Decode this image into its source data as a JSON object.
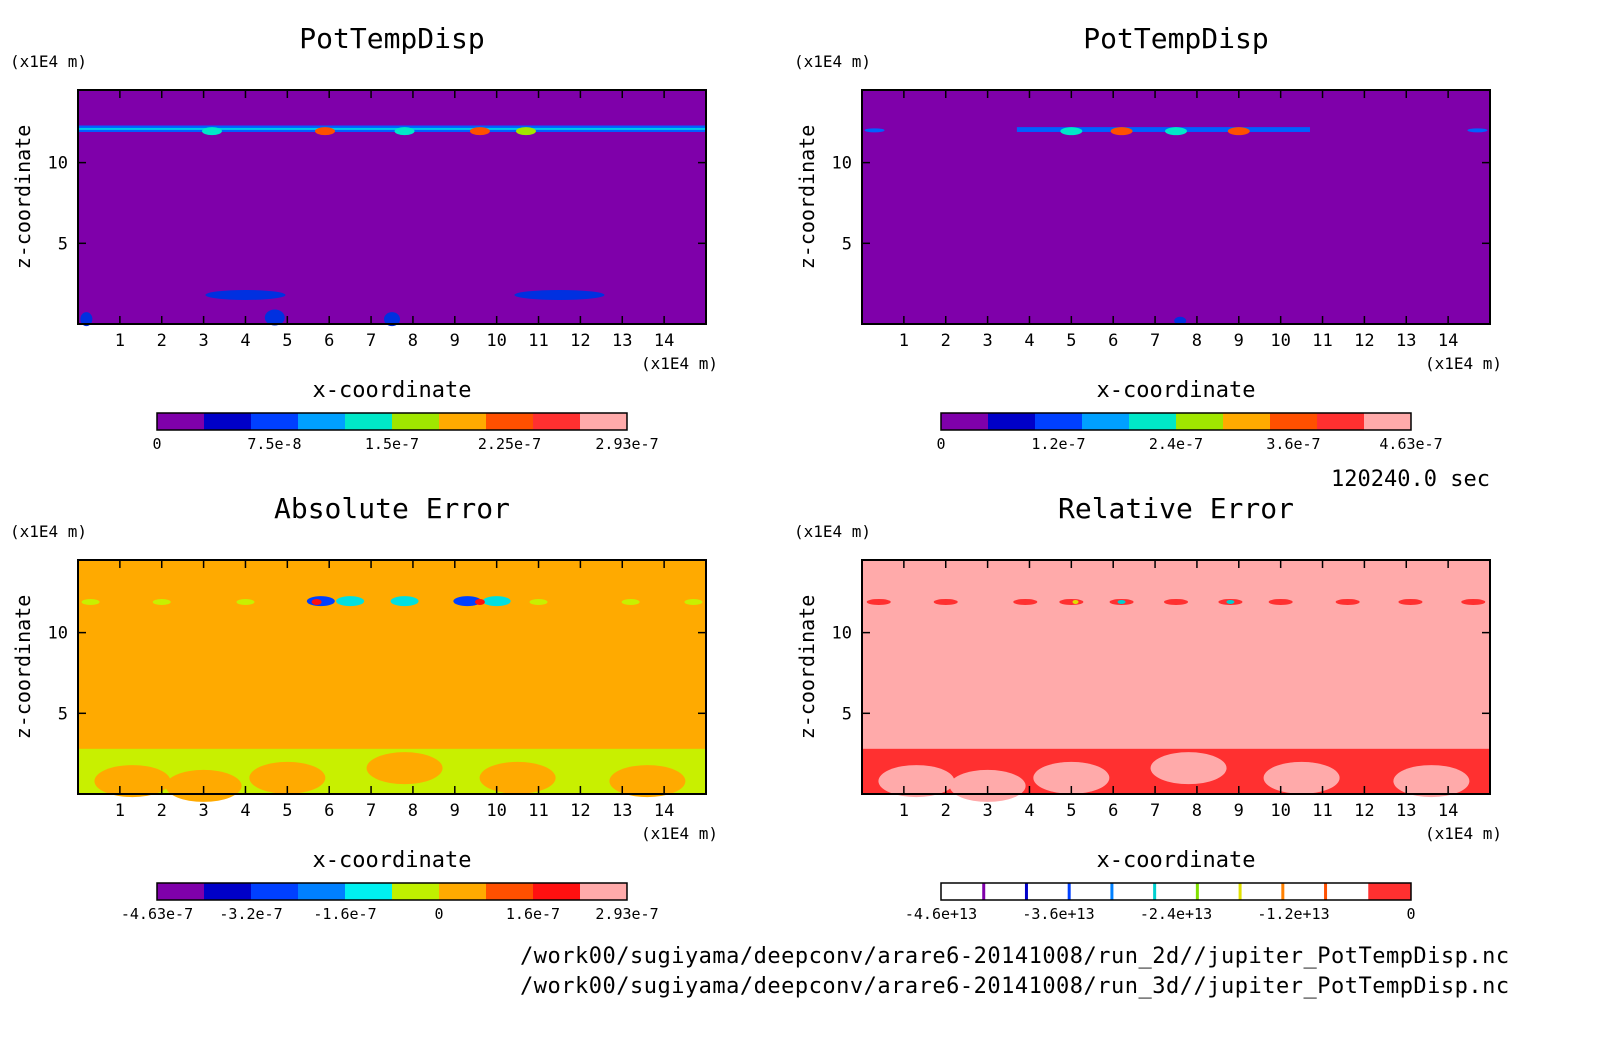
{
  "time_label": "120240.0 sec",
  "files": [
    "/work00/sugiyama/deepconv/arare6-20141008/run_2d//jupiter_PotTempDisp.nc",
    "/work00/sugiyama/deepconv/arare6-20141008/run_3d//jupiter_PotTempDisp.nc"
  ],
  "chart_data": [
    {
      "type": "heatmap",
      "title": "PotTempDisp",
      "xlabel": "x-coordinate",
      "ylabel": "z-coordinate",
      "x_unit": "(x1E4 m)",
      "y_unit": "(x1E4 m)",
      "xlim": [
        0,
        15
      ],
      "ylim": [
        0,
        14.5
      ],
      "xticks": [
        "1",
        "2",
        "3",
        "4",
        "5",
        "6",
        "7",
        "8",
        "9",
        "10",
        "11",
        "12",
        "13",
        "14"
      ],
      "yticks": [
        "5",
        "10"
      ],
      "background": "#7F00AA",
      "colorbar": {
        "colors": [
          "#7F00AA",
          "#0000C8",
          "#0040FF",
          "#00A0FF",
          "#00E8C8",
          "#A0E600",
          "#FFAA00",
          "#FF5000",
          "#FF3030",
          "#FFAAAA"
        ],
        "labels": [
          "0",
          "7.5e-8",
          "1.5e-7",
          "2.25e-7",
          "2.93e-7"
        ]
      }
    },
    {
      "type": "heatmap",
      "title": "PotTempDisp",
      "xlabel": "x-coordinate",
      "ylabel": "z-coordinate",
      "x_unit": "(x1E4 m)",
      "y_unit": "(x1E4 m)",
      "xlim": [
        0,
        15
      ],
      "ylim": [
        0,
        14.5
      ],
      "xticks": [
        "1",
        "2",
        "3",
        "4",
        "5",
        "6",
        "7",
        "8",
        "9",
        "10",
        "11",
        "12",
        "13",
        "14"
      ],
      "yticks": [
        "5",
        "10"
      ],
      "background": "#7F00AA",
      "colorbar": {
        "colors": [
          "#7F00AA",
          "#0000C8",
          "#0040FF",
          "#00A0FF",
          "#00E8C8",
          "#A0E600",
          "#FFAA00",
          "#FF5000",
          "#FF3030",
          "#FFAAAA"
        ],
        "labels": [
          "0",
          "1.2e-7",
          "2.4e-7",
          "3.6e-7",
          "4.63e-7"
        ]
      }
    },
    {
      "type": "heatmap",
      "title": "Absolute Error",
      "xlabel": "x-coordinate",
      "ylabel": "z-coordinate",
      "x_unit": "(x1E4 m)",
      "y_unit": "(x1E4 m)",
      "xlim": [
        0,
        15
      ],
      "ylim": [
        0,
        14.5
      ],
      "xticks": [
        "1",
        "2",
        "3",
        "4",
        "5",
        "6",
        "7",
        "8",
        "9",
        "10",
        "11",
        "12",
        "13",
        "14"
      ],
      "yticks": [
        "5",
        "10"
      ],
      "background": "#FFAA00",
      "colorbar": {
        "colors": [
          "#7F00AA",
          "#0000C8",
          "#0040FF",
          "#0080FF",
          "#00F0F0",
          "#C0F000",
          "#FFAA00",
          "#FF5000",
          "#FF1010",
          "#FFAAAA"
        ],
        "labels": [
          "-4.63e-7",
          "-3.2e-7",
          "-1.6e-7",
          "0",
          "1.6e-7",
          "2.93e-7"
        ]
      }
    },
    {
      "type": "heatmap",
      "title": "Relative Error",
      "xlabel": "x-coordinate",
      "ylabel": "z-coordinate",
      "x_unit": "(x1E4 m)",
      "y_unit": "(x1E4 m)",
      "xlim": [
        0,
        15
      ],
      "ylim": [
        0,
        14.5
      ],
      "xticks": [
        "1",
        "2",
        "3",
        "4",
        "5",
        "6",
        "7",
        "8",
        "9",
        "10",
        "11",
        "12",
        "13",
        "14"
      ],
      "yticks": [
        "5",
        "10"
      ],
      "background": "#FFAAAA",
      "colorbar": {
        "colors": [
          "#ffffff",
          "#ffffff",
          "#ffffff",
          "#ffffff",
          "#ffffff",
          "#ffffff",
          "#ffffff",
          "#ffffff",
          "#ffffff",
          "#ffffff",
          "#FF3030"
        ],
        "line_colors": [
          "#7F00AA",
          "#0000C8",
          "#0040FF",
          "#0080FF",
          "#00D0D0",
          "#80E000",
          "#E0E000",
          "#FF8000",
          "#FF5000"
        ],
        "labels": [
          "-4.6e+13",
          "-3.6e+13",
          "-2.4e+13",
          "-1.2e+13",
          "0"
        ]
      }
    }
  ]
}
